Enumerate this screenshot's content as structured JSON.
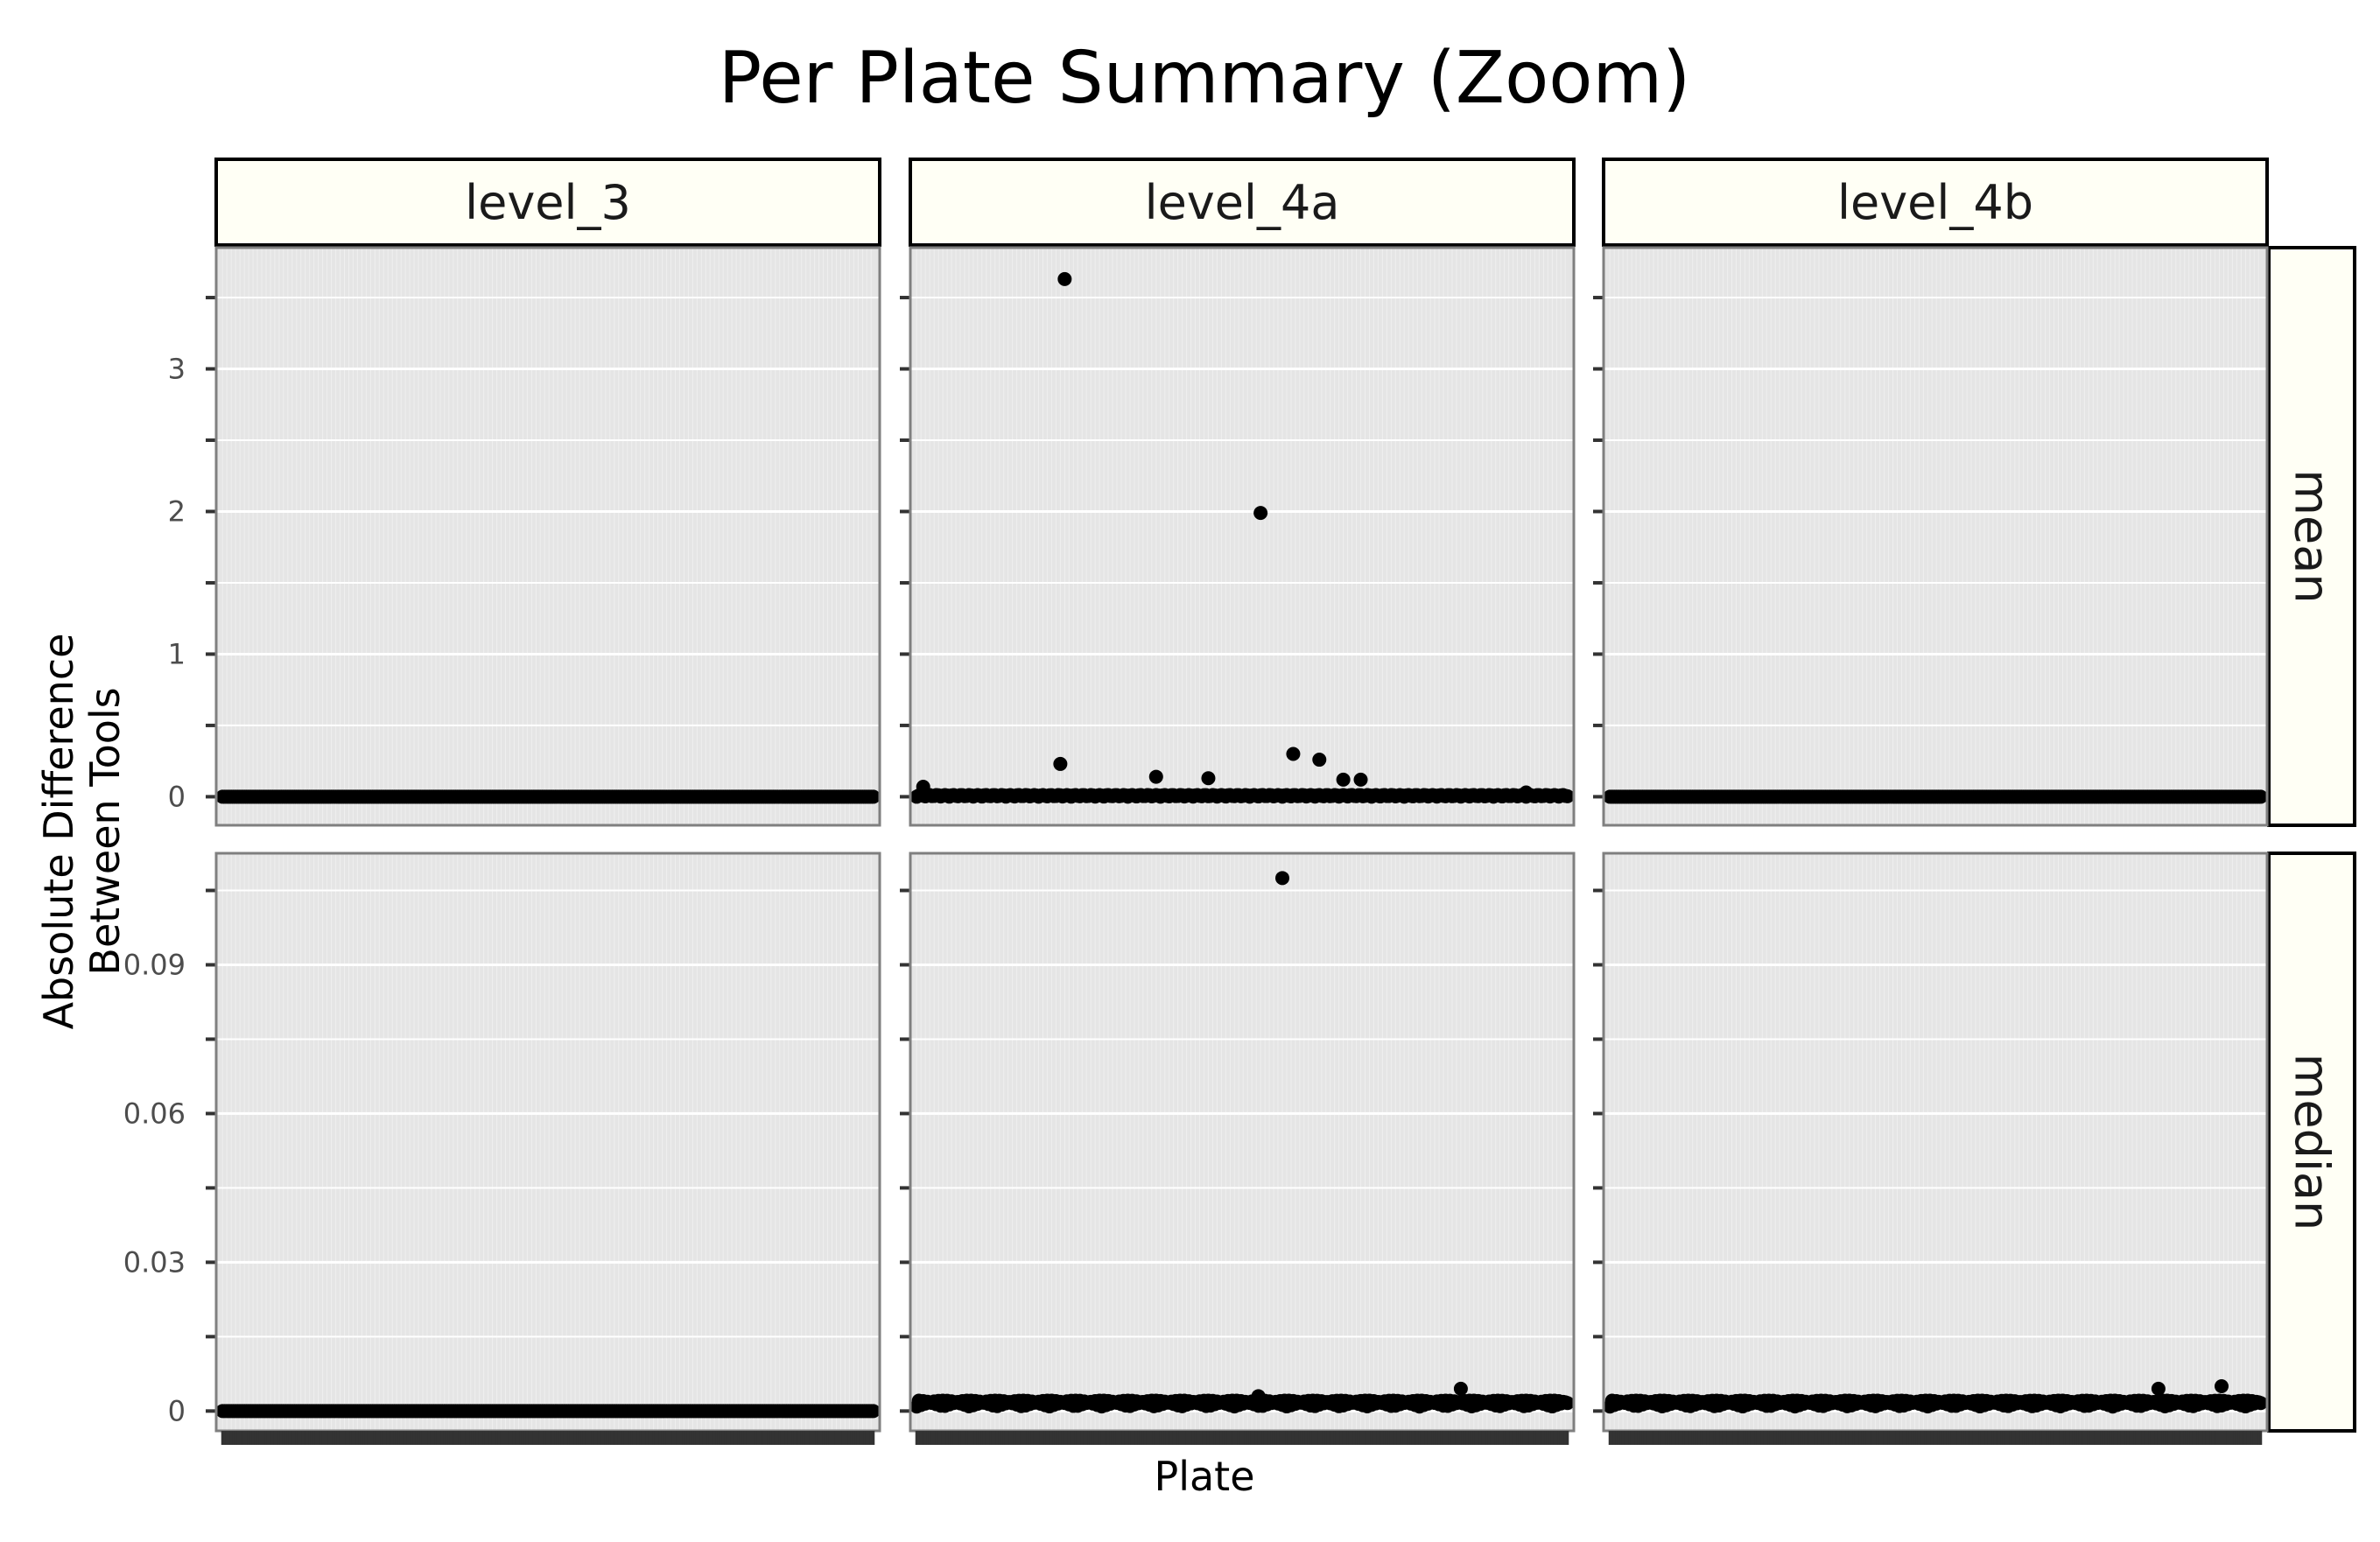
{
  "chart_data": {
    "type": "scatter",
    "title": "Per Plate Summary (Zoom)",
    "xlabel": "Plate",
    "ylabel_lines": [
      "Absolute Difference",
      "Between Tools"
    ],
    "columns": [
      "level_3",
      "level_4a",
      "level_4b"
    ],
    "rows": [
      {
        "name": "mean",
        "ylim": [
          -0.2,
          3.85
        ],
        "ticks": [
          0,
          1,
          2,
          3
        ],
        "tick_labels": [
          "0",
          "1",
          "2",
          "3"
        ]
      },
      {
        "name": "median",
        "ylim": [
          -0.004,
          0.1125
        ],
        "ticks": [
          0,
          0.03,
          0.06,
          0.09
        ],
        "tick_labels": [
          "0",
          "0.03",
          "0.06",
          "0.09"
        ]
      }
    ],
    "x_count": 300,
    "baselines": {
      "mean": {
        "level_3": 0.0,
        "level_4a": 0.0,
        "level_4b": 0.0
      },
      "median": {
        "level_3": 0.0,
        "level_4a": 0.0015,
        "level_4b": 0.0015
      }
    },
    "outliers": {
      "mean": {
        "level_3": [],
        "level_4a": [
          {
            "x": 3,
            "y": 0.07
          },
          {
            "x": 68,
            "y": 3.63
          },
          {
            "x": 66,
            "y": 0.23
          },
          {
            "x": 110,
            "y": 0.14
          },
          {
            "x": 134,
            "y": 0.13
          },
          {
            "x": 158,
            "y": 1.99
          },
          {
            "x": 173,
            "y": 0.3
          },
          {
            "x": 185,
            "y": 0.26
          },
          {
            "x": 196,
            "y": 0.12
          },
          {
            "x": 204,
            "y": 0.12
          },
          {
            "x": 280,
            "y": 0.03
          }
        ],
        "level_4b": []
      },
      "median": {
        "level_3": [],
        "level_4a": [
          {
            "x": 168,
            "y": 0.1075
          },
          {
            "x": 157,
            "y": 0.003
          },
          {
            "x": 250,
            "y": 0.0045
          }
        ],
        "level_4b": [
          {
            "x": 252,
            "y": 0.0045
          },
          {
            "x": 281,
            "y": 0.005
          }
        ]
      }
    },
    "point_color": "#000000",
    "panel_background": "#e5e5e5",
    "strip_background": "#fffff5",
    "grid_color": "#ffffff",
    "grid": true
  }
}
